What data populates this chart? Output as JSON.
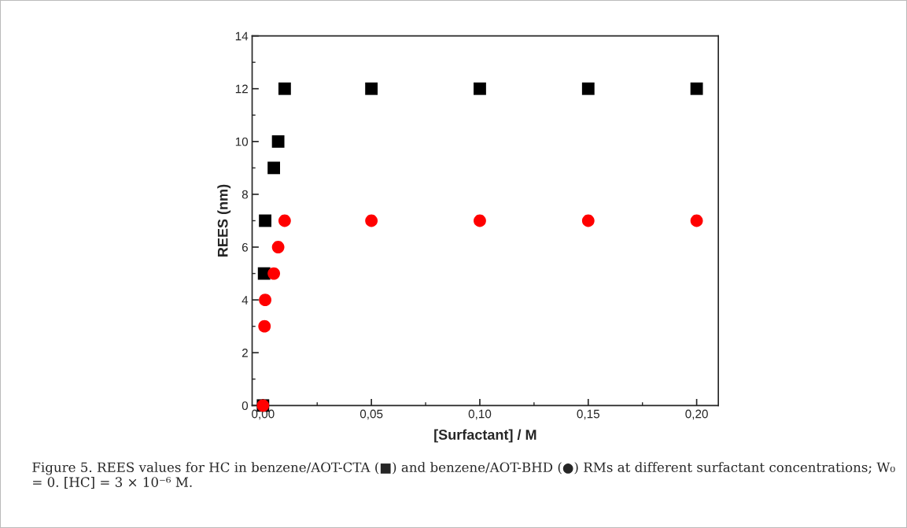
{
  "chart_data": {
    "type": "scatter",
    "xlabel": "[Surfactant] / M",
    "ylabel": "REES (nm)",
    "annotations": [
      "Figure 5. REES values for HC in benzene/AOT-CTA (■) and benzene/AOT-BHD (●) RMs at different surfactant concentrations; W₀ = 0. [HC] = 3 × 10⁻⁶ M."
    ],
    "series": [
      {
        "color": "#000000",
        "marker": "square",
        "x": [
          0,
          0.0005,
          0.001,
          0.005,
          0.007,
          0.01,
          0.05,
          0.1,
          0.15,
          0.2
        ],
        "values": [
          0,
          5,
          7,
          9,
          10,
          12,
          12,
          12,
          12,
          12
        ]
      },
      {
        "color": "#ff0000",
        "marker": "circle",
        "x": [
          0,
          0.0007,
          0.001,
          0.005,
          0.007,
          0.01,
          0.05,
          0.1,
          0.15,
          0.2
        ],
        "values": [
          0,
          3,
          4,
          5,
          6,
          7,
          7,
          7,
          7,
          7
        ]
      }
    ],
    "xlim": [
      -0.005,
      0.21
    ],
    "ylim": [
      0,
      14
    ],
    "xticks": [
      {
        "value": 0,
        "label": "0,00"
      },
      {
        "value": 0.05,
        "label": "0,05"
      },
      {
        "value": 0.1,
        "label": "0,10"
      },
      {
        "value": 0.15,
        "label": "0,15"
      },
      {
        "value": 0.2,
        "label": "0,20"
      }
    ],
    "yticks": [
      0,
      2,
      4,
      6,
      8,
      10,
      12,
      14
    ],
    "grid": false,
    "legend": false
  }
}
